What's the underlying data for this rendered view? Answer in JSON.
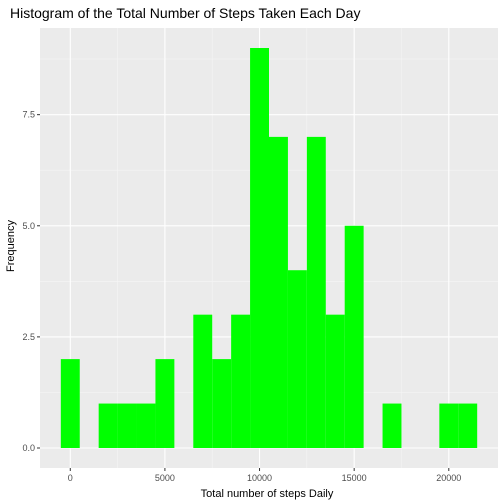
{
  "chart_data": {
    "type": "bar",
    "title": "Histogram of the Total Number of Steps Taken Each Day",
    "xlabel": "Total number of steps Daily",
    "ylabel": "Frequency",
    "bin_width": 1000,
    "bins": [
      {
        "x_start": -500,
        "x_end": 500,
        "count": 2
      },
      {
        "x_start": 1500,
        "x_end": 2500,
        "count": 1
      },
      {
        "x_start": 2500,
        "x_end": 3500,
        "count": 1
      },
      {
        "x_start": 3500,
        "x_end": 4500,
        "count": 1
      },
      {
        "x_start": 4500,
        "x_end": 5500,
        "count": 2
      },
      {
        "x_start": 6500,
        "x_end": 7500,
        "count": 3
      },
      {
        "x_start": 7500,
        "x_end": 8500,
        "count": 2
      },
      {
        "x_start": 8500,
        "x_end": 9500,
        "count": 3
      },
      {
        "x_start": 9500,
        "x_end": 10500,
        "count": 9
      },
      {
        "x_start": 10500,
        "x_end": 11500,
        "count": 7
      },
      {
        "x_start": 11500,
        "x_end": 12500,
        "count": 4
      },
      {
        "x_start": 12500,
        "x_end": 13500,
        "count": 7
      },
      {
        "x_start": 13500,
        "x_end": 14500,
        "count": 3
      },
      {
        "x_start": 14500,
        "x_end": 15500,
        "count": 5
      },
      {
        "x_start": 16500,
        "x_end": 17500,
        "count": 1
      },
      {
        "x_start": 19500,
        "x_end": 20500,
        "count": 1
      },
      {
        "x_start": 20500,
        "x_end": 21500,
        "count": 1
      }
    ],
    "xlim": [
      -1600,
      22600
    ],
    "ylim": [
      -0.45,
      9.45
    ],
    "x_ticks": [
      0,
      5000,
      10000,
      15000,
      20000
    ],
    "x_tick_labels": [
      "0",
      "5000",
      "10000",
      "15000",
      "20000"
    ],
    "y_ticks": [
      0,
      2.5,
      5,
      7.5
    ],
    "y_tick_labels": [
      "0.0",
      "2.5",
      "5.0",
      "7.5"
    ],
    "grid": true,
    "legend": "none",
    "colors": {
      "bar": "#00ff00",
      "panel_background": "#ebebeb",
      "grid_major": "#ffffff",
      "grid_minor": "#f5f5f5"
    }
  }
}
